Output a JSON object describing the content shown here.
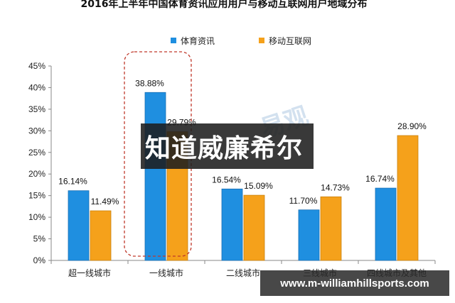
{
  "watermark_text": "易观",
  "banner_text": "知道威廉希尔",
  "url_text": "www.m-williamhillsports.com",
  "chart_data": {
    "type": "bar",
    "title": "2016年上半年中国体育资讯应用用户与移动互联网用户地域分布",
    "categories": [
      "超一线城市",
      "一线城市",
      "二线城市",
      "三线城市",
      "四线城市及其他"
    ],
    "series": [
      {
        "name": "体育资讯",
        "values": [
          16.14,
          38.88,
          16.54,
          11.7,
          16.74
        ],
        "color": "#1f8fe0"
      },
      {
        "name": "移动互联网",
        "values": [
          11.49,
          29.79,
          15.09,
          14.73,
          28.9
        ],
        "color": "#f5a11b"
      }
    ],
    "data_labels": [
      [
        "16.14%",
        "38.88%",
        "16.54%",
        "11.70%",
        "16.74%"
      ],
      [
        "11.49%",
        "29.79%",
        "15.09%",
        "14.73%",
        "28.90%"
      ]
    ],
    "ylim": [
      0,
      45
    ],
    "yticks": [
      "0%",
      "5%",
      "10%",
      "15%",
      "20%",
      "25%",
      "30%",
      "35%",
      "40%",
      "45%"
    ],
    "legend_position": "top",
    "grid": false,
    "highlight_category": "一线城市"
  }
}
